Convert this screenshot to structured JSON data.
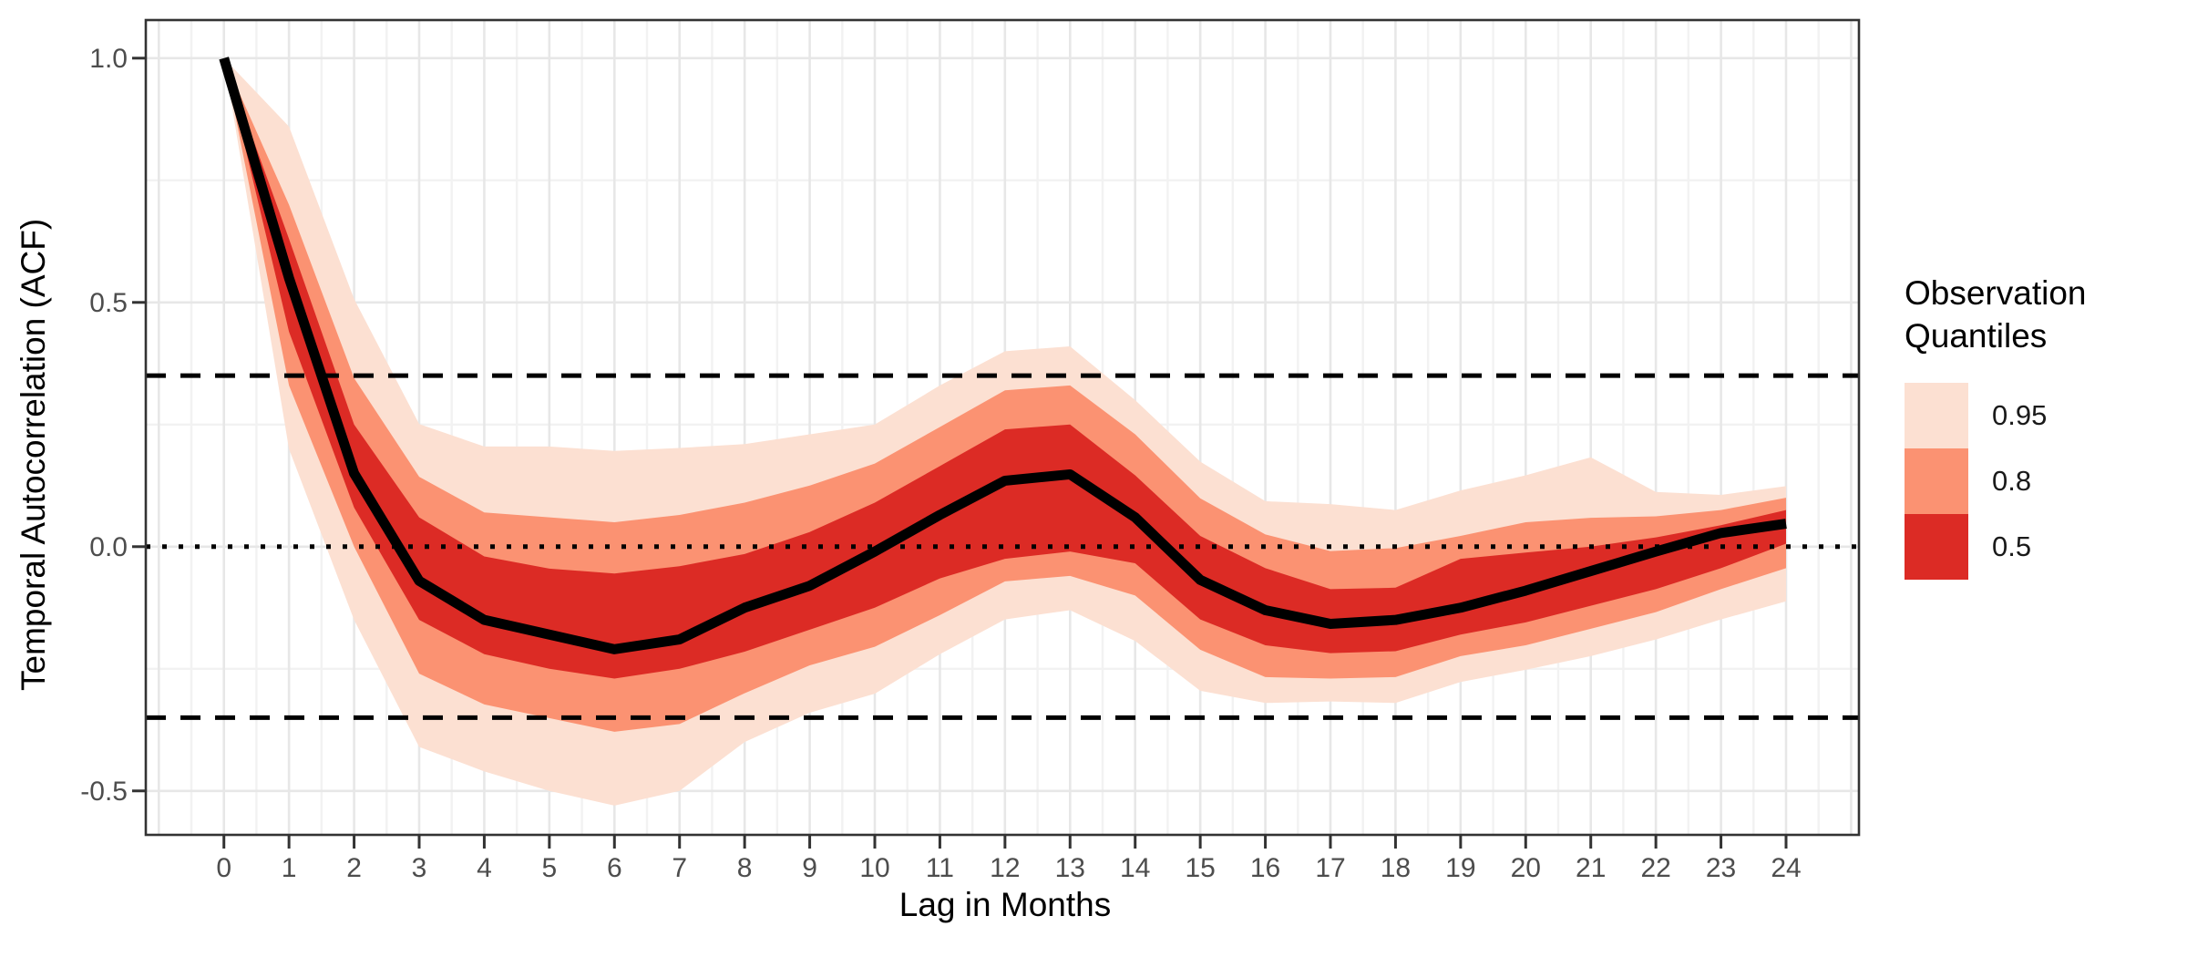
{
  "chart": {
    "x_axis": {
      "title": "Lag in Months"
    },
    "y_axis": {
      "title": "Temporal Autocorrelation (ACF)"
    },
    "legend": {
      "title_line1": "Observation",
      "title_line2": "Quantiles",
      "entries": [
        {
          "label": "0.95",
          "color": "#fce0d2"
        },
        {
          "label": "0.8",
          "color": "#fb9272"
        },
        {
          "label": "0.5",
          "color": "#dc2b25"
        }
      ]
    }
  },
  "chart_data": {
    "type": "area",
    "title": "",
    "xlabel": "Lag in Months",
    "ylabel": "Temporal Autocorrelation (ACF)",
    "legend_title": "Observation Quantiles",
    "legend_position": "right",
    "grid": true,
    "xlim": [
      -1.2,
      25.12
    ],
    "ylim": [
      -0.59,
      1.078
    ],
    "x": [
      0,
      1,
      2,
      3,
      4,
      5,
      6,
      7,
      8,
      9,
      10,
      11,
      12,
      13,
      14,
      15,
      16,
      17,
      18,
      19,
      20,
      21,
      22,
      23,
      24
    ],
    "x_tick_labels": [
      "0",
      "1",
      "2",
      "3",
      "4",
      "5",
      "6",
      "7",
      "8",
      "9",
      "10",
      "11",
      "12",
      "13",
      "14",
      "15",
      "16",
      "17",
      "18",
      "19",
      "20",
      "21",
      "22",
      "23",
      "24"
    ],
    "y_ticks": [
      1.0,
      0.5,
      0.0,
      -0.5
    ],
    "y_tick_labels": [
      "1.0",
      "0.5",
      "0.0",
      "-0.5"
    ],
    "y_minor_ticks": [
      0.75,
      0.25,
      -0.25
    ],
    "series": [
      {
        "name": "quantile-band-0.95",
        "label": "0.95",
        "type": "band",
        "color": "#fce0d2",
        "hi": [
          1.0,
          0.86,
          0.507,
          0.251,
          0.205,
          0.205,
          0.196,
          0.202,
          0.21,
          0.23,
          0.25,
          0.33,
          0.4,
          0.41,
          0.3,
          0.174,
          0.093,
          0.087,
          0.075,
          0.115,
          0.146,
          0.183,
          0.112,
          0.106,
          0.124
        ],
        "lo": [
          1.0,
          0.2,
          -0.15,
          -0.41,
          -0.46,
          -0.5,
          -0.53,
          -0.5,
          -0.4,
          -0.34,
          -0.301,
          -0.22,
          -0.149,
          -0.13,
          -0.193,
          -0.295,
          -0.32,
          -0.317,
          -0.32,
          -0.277,
          -0.252,
          -0.224,
          -0.19,
          -0.149,
          -0.112
        ]
      },
      {
        "name": "quantile-band-0.8",
        "label": "0.8",
        "type": "band",
        "color": "#fb9272",
        "hi": [
          1.0,
          0.7,
          0.345,
          0.143,
          0.07,
          0.06,
          0.05,
          0.065,
          0.09,
          0.125,
          0.17,
          0.245,
          0.32,
          0.33,
          0.23,
          0.099,
          0.025,
          -0.009,
          -0.003,
          0.022,
          0.05,
          0.059,
          0.062,
          0.075,
          0.1
        ],
        "lo": [
          1.0,
          0.33,
          0.0,
          -0.26,
          -0.323,
          -0.351,
          -0.379,
          -0.363,
          -0.3,
          -0.243,
          -0.205,
          -0.14,
          -0.071,
          -0.06,
          -0.1,
          -0.211,
          -0.267,
          -0.27,
          -0.267,
          -0.224,
          -0.202,
          -0.168,
          -0.134,
          -0.087,
          -0.044
        ]
      },
      {
        "name": "quantile-band-0.5",
        "label": "0.5",
        "type": "band",
        "color": "#dc2b25",
        "hi": [
          1.0,
          0.63,
          0.25,
          0.06,
          -0.02,
          -0.045,
          -0.055,
          -0.04,
          -0.015,
          0.03,
          0.09,
          0.165,
          0.24,
          0.25,
          0.146,
          0.022,
          -0.044,
          -0.087,
          -0.084,
          -0.025,
          -0.012,
          0.0,
          0.019,
          0.044,
          0.075
        ],
        "lo": [
          1.0,
          0.44,
          0.08,
          -0.15,
          -0.22,
          -0.25,
          -0.27,
          -0.25,
          -0.215,
          -0.17,
          -0.125,
          -0.065,
          -0.025,
          -0.01,
          -0.034,
          -0.149,
          -0.202,
          -0.218,
          -0.214,
          -0.18,
          -0.155,
          -0.121,
          -0.087,
          -0.044,
          0.006
        ]
      },
      {
        "name": "median-acf-line",
        "label": "median",
        "type": "line",
        "color": "#000000",
        "values": [
          1.0,
          0.55,
          0.15,
          -0.07,
          -0.15,
          -0.18,
          -0.21,
          -0.19,
          -0.125,
          -0.08,
          -0.01,
          0.065,
          0.135,
          0.148,
          0.06,
          -0.068,
          -0.13,
          -0.158,
          -0.15,
          -0.125,
          -0.09,
          -0.05,
          -0.01,
          0.028,
          0.047
        ]
      }
    ],
    "reference_lines": [
      {
        "y": 0.35,
        "style": "dashed",
        "color": "#000000",
        "name": "significance-threshold-upper"
      },
      {
        "y": 0.0,
        "style": "dotted",
        "color": "#000000",
        "name": "zero-line"
      },
      {
        "y": -0.35,
        "style": "dashed",
        "color": "#000000",
        "name": "significance-threshold-lower"
      }
    ]
  }
}
